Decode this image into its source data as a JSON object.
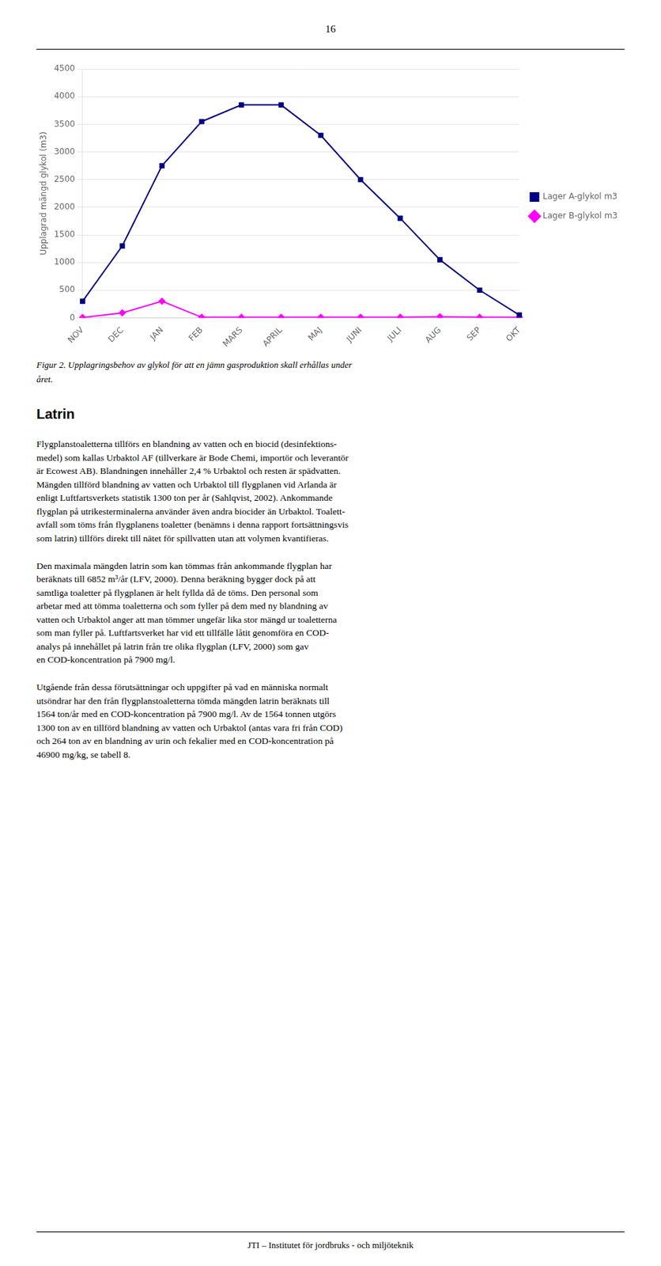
{
  "page_number": "16",
  "chart_data": {
    "type": "line",
    "categories": [
      "NOV",
      "DEC",
      "JAN",
      "FEB",
      "MARS",
      "APRIL",
      "MAJ",
      "JUNI",
      "JULI",
      "AUG",
      "SEP",
      "OKT"
    ],
    "series": [
      {
        "name": "Lager A-glykol m3",
        "color": "#000080",
        "marker": "square",
        "values": [
          300,
          1300,
          2750,
          3550,
          3850,
          3850,
          3300,
          2500,
          1800,
          1050,
          500,
          50
        ]
      },
      {
        "name": "Lager B-glykol m3",
        "color": "#FF00FF",
        "marker": "diamond",
        "values": [
          5,
          90,
          300,
          10,
          10,
          10,
          10,
          10,
          10,
          20,
          10,
          10
        ]
      }
    ],
    "y_label": "Upplagrad mängd glykol (m3)",
    "ylim": [
      0,
      4500
    ],
    "yticks": [
      0,
      500,
      1000,
      1500,
      2000,
      2500,
      3000,
      3500,
      4000,
      4500
    ],
    "grid": "y",
    "legend": "right"
  },
  "caption": [
    "Figur 2.  Upplagringsbehov av glykol för att en jämn gasproduktion skall erhållas under",
    "året."
  ],
  "heading": "Latrin",
  "paragraphs": [
    "Flygplanstoaletterna tillförs en blandning av vatten och en biocid (desinfektions-\nmedel) som kallas Urbaktol AF (tillverkare är Bode Chemi, importör och leverantör\när Ecowest AB). Blandningen innehåller 2,4 % Urbaktol och resten är spädvatten.\nMängden tillförd blandning av vatten och Urbaktol till flygplanen vid Arlanda är\nenligt Luftfartsverkets statistik 1300 ton per år (Sahlqvist, 2002). Ankommande\nflygplan på utrikesterminalerna använder även andra biocider än Urbaktol. Toalett-\navfall som töms från flygplanens toaletter (benämns i denna rapport fortsättningsvis\nsom latrin) tillförs direkt till nätet för spillvatten utan att volymen kvantifieras.",
    "Den maximala mängden latrin som kan tömmas från ankommande flygplan har\nberäknats till 6852 m³/år (LFV, 2000). Denna beräkning bygger dock på att\nsamtliga toaletter på flygplanen är helt fyllda då de töms. Den personal som\narbetar med att tömma toaletterna och som fyller på dem med ny blandning av\nvatten och Urbaktol anger att man tömmer ungefär lika stor mängd ur toaletterna\nsom man fyller på. Luftfartsverket har vid ett tillfälle låtit genomföra en COD-\nanalys på innehållet på latrin från tre olika flygplan (LFV, 2000) som gav\nen COD-koncentration på 7900 mg/l.",
    "Utgående från dessa förutsättningar och uppgifter på vad en människa normalt\nutsöndrar har den från flygplanstoaletterna tömda mängden latrin beräknats till\n1564 ton/år med en COD-koncentration på 7900 mg/l. Av de 1564 tonnen utgörs\n1300 ton av en tillförd blandning av vatten och Urbaktol (antas vara fri från COD)\noch 264 ton av en blandning av urin och fekalier med en COD-koncentration på\n46900 mg/kg, se tabell 8."
  ],
  "footer": "JTI – Institutet för jordbruks - och miljöteknik"
}
